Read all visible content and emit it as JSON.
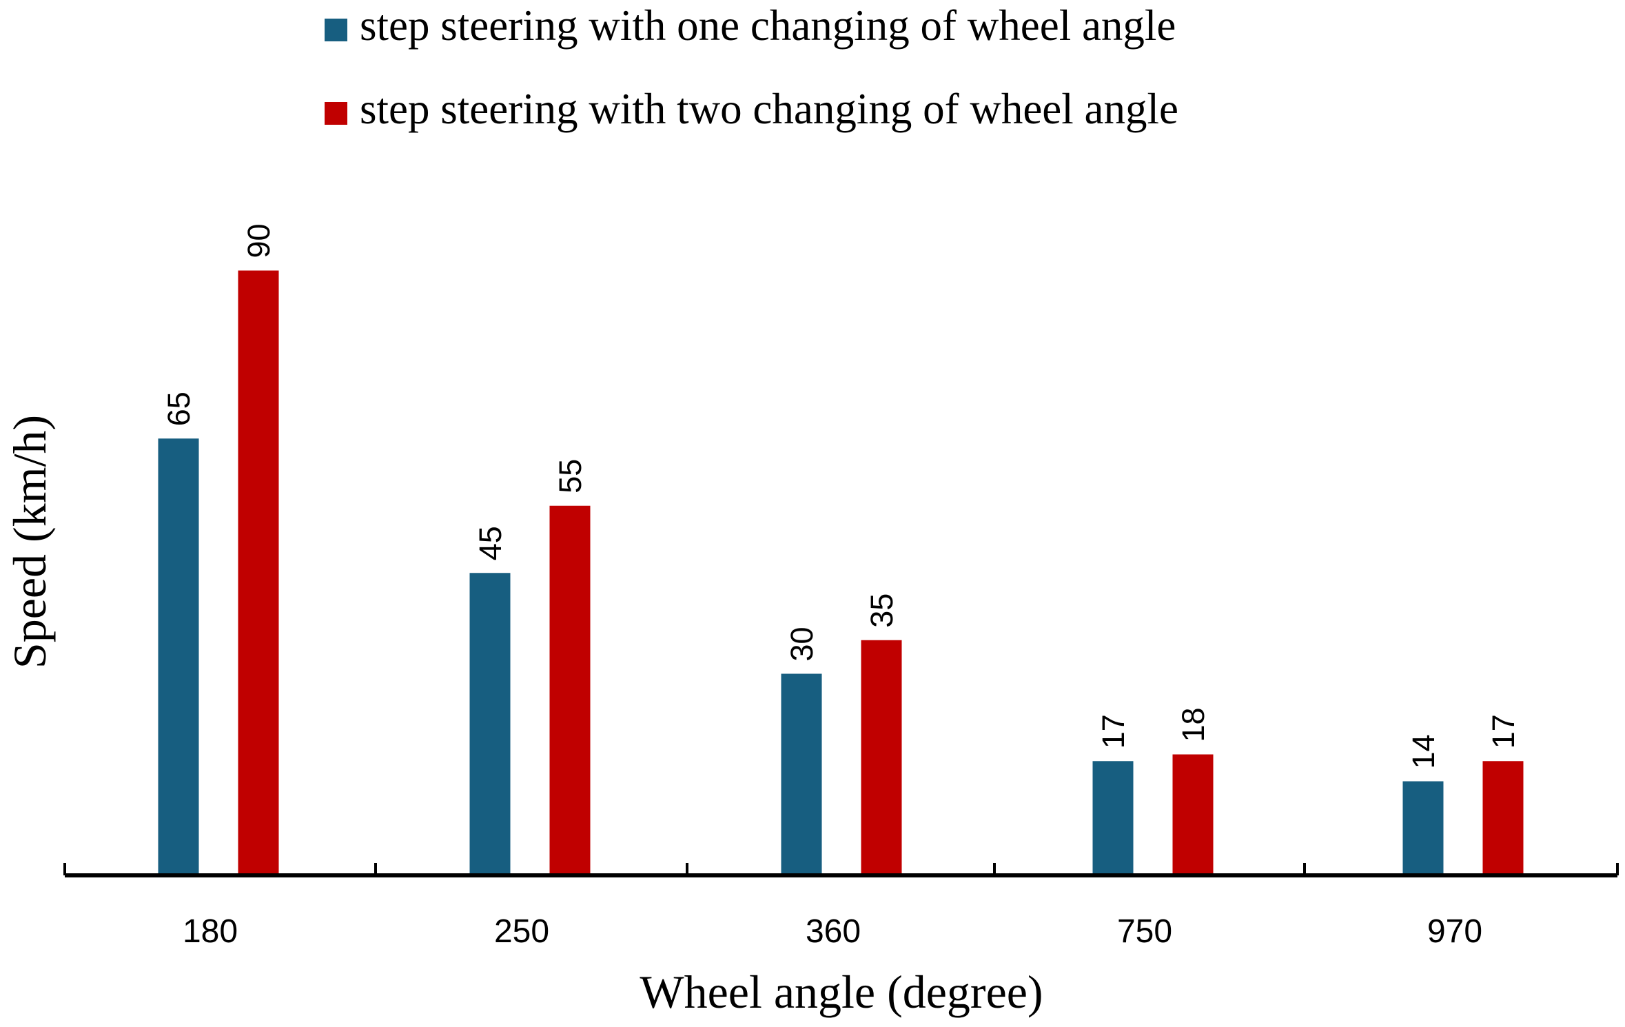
{
  "chart_data": {
    "type": "bar",
    "title": "",
    "xlabel": "Wheel angle (degree)",
    "ylabel": "Speed (km/h)",
    "categories": [
      "180",
      "250",
      "360",
      "750",
      "970"
    ],
    "series": [
      {
        "name": "step steering with one changing of wheel angle",
        "color": "#175e80",
        "values": [
          65,
          45,
          30,
          17,
          14
        ]
      },
      {
        "name": "step steering with two changing of wheel angle",
        "color": "#c00000",
        "values": [
          90,
          55,
          35,
          18,
          17
        ]
      }
    ],
    "ylim": [
      0,
      100
    ],
    "grid": false,
    "legend_position": "top-center",
    "data_labels": true
  }
}
